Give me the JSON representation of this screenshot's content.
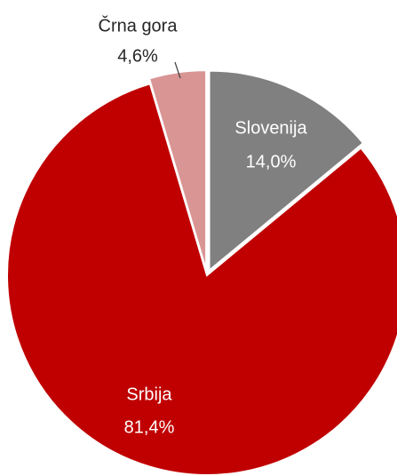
{
  "chart_data": {
    "type": "pie",
    "categories": [
      "Slovenija",
      "Srbija",
      "Črna gora"
    ],
    "values": [
      14.0,
      81.4,
      4.6
    ],
    "value_labels": [
      "14,0%",
      "81,4%",
      "4,6%"
    ],
    "colors": [
      "#808080",
      "#c00000",
      "#d99594"
    ]
  }
}
